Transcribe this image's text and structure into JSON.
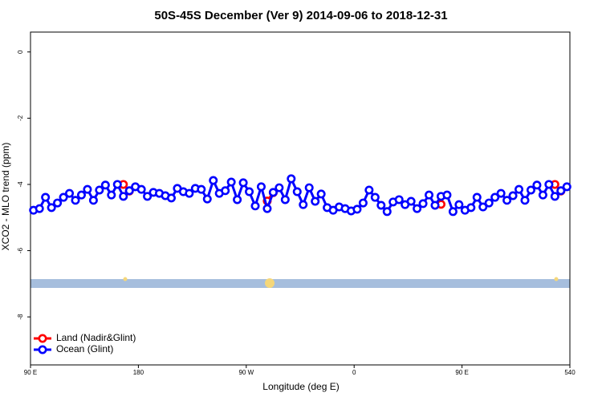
{
  "chart_data": {
    "type": "line",
    "title": "50S-45S December (Ver 9)   2014-09-06 to 2018-12-31",
    "xlabel": "Longitude (deg E)",
    "ylabel": "XCO2 - MLO trend (ppm)",
    "xlim": [
      90,
      540
    ],
    "ylim": [
      -9.45,
      0.6
    ],
    "xticks": [
      {
        "value": 90,
        "label": "90 E"
      },
      180,
      {
        "value": 270,
        "label": "90 W"
      },
      {
        "value": 360,
        "label": "0"
      },
      {
        "value": 450,
        "label": "90 E"
      },
      540
    ],
    "yticks": [
      0,
      -2,
      -4,
      -6,
      -8
    ],
    "legend": "bottom-left",
    "series": [
      {
        "name": "Land (Nadir&Glint)",
        "color": "#ff0000",
        "x": [
          167.5,
          172.5,
          177.5,
          287.5,
          292.5,
          297.5,
          432.5,
          437.5,
          527.5,
          532.5
        ],
        "values": [
          -4.0,
          -4.2,
          null,
          -4.5,
          -4.25,
          null,
          -4.6,
          null,
          -4.0,
          -4.2
        ]
      },
      {
        "name": "Ocean (Glint)",
        "color": "#0000ff",
        "x": [
          92.5,
          97.5,
          102.5,
          107.5,
          112.5,
          117.5,
          122.5,
          127.5,
          132.5,
          137.5,
          142.5,
          147.5,
          152.5,
          157.5,
          162.5,
          167.5,
          172.5,
          177.5,
          182.5,
          187.5,
          192.5,
          197.5,
          202.5,
          207.5,
          212.5,
          217.5,
          222.5,
          227.5,
          232.5,
          237.5,
          242.5,
          247.5,
          252.5,
          257.5,
          262.5,
          267.5,
          272.5,
          277.5,
          282.5,
          287.5,
          292.5,
          297.5,
          302.5,
          307.5,
          312.5,
          317.5,
          322.5,
          327.5,
          332.5,
          337.5,
          342.5,
          347.5,
          352.5,
          357.5,
          362.5,
          367.5,
          372.5,
          377.5,
          382.5,
          387.5,
          392.5,
          397.5,
          402.5,
          407.5,
          412.5,
          417.5,
          422.5,
          427.5,
          432.5,
          437.5,
          442.5,
          447.5,
          452.5,
          457.5,
          462.5,
          467.5,
          472.5,
          477.5,
          482.5,
          487.5,
          492.5,
          497.5,
          502.5,
          507.5,
          512.5,
          517.5,
          522.5,
          527.5,
          532.5,
          537.5
        ],
        "values": [
          -4.78,
          -4.73,
          -4.39,
          -4.7,
          -4.56,
          -4.39,
          -4.27,
          -4.48,
          -4.32,
          -4.15,
          -4.48,
          -4.17,
          -4.02,
          -4.32,
          -4.0,
          -4.36,
          -4.19,
          -4.07,
          -4.15,
          -4.36,
          -4.24,
          -4.27,
          -4.34,
          -4.41,
          -4.12,
          -4.22,
          -4.27,
          -4.12,
          -4.15,
          -4.44,
          -3.88,
          -4.27,
          -4.19,
          -3.93,
          -4.46,
          -3.95,
          -4.22,
          -4.65,
          -4.07,
          -4.73,
          -4.24,
          -4.1,
          -4.46,
          -3.83,
          -4.22,
          -4.61,
          -4.1,
          -4.51,
          -4.29,
          -4.7,
          -4.78,
          -4.68,
          -4.73,
          -4.8,
          -4.75,
          -4.56,
          -4.17,
          -4.39,
          -4.63,
          -4.82,
          -4.53,
          -4.46,
          -4.61,
          -4.51,
          -4.73,
          -4.58,
          -4.32,
          -4.63,
          -4.36,
          -4.32,
          -4.82,
          -4.61,
          -4.78,
          -4.7,
          -4.39,
          -4.68,
          -4.56,
          -4.39,
          -4.27,
          -4.48,
          -4.34,
          -4.15,
          -4.48,
          -4.17,
          -4.02,
          -4.32,
          -4.0,
          -4.36,
          -4.19,
          -4.07
        ]
      }
    ]
  }
}
